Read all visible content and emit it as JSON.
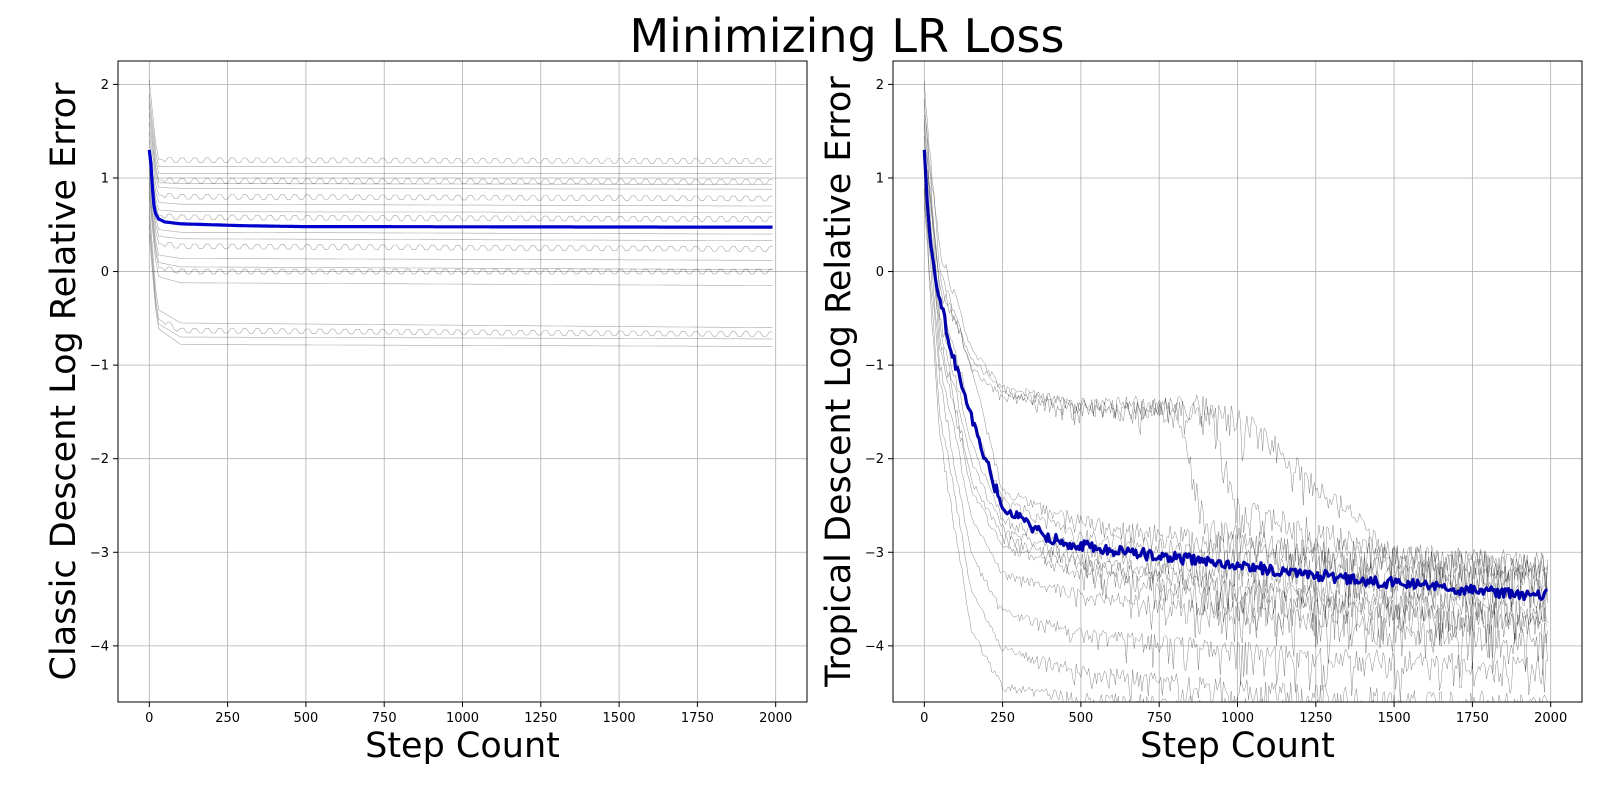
{
  "figure": {
    "title": "Minimizing LR Loss"
  },
  "chart_data": [
    {
      "type": "line",
      "id": "classic",
      "title": "",
      "xlabel": "Step Count",
      "ylabel": "Classic Descent Log Relative Error",
      "xlim": [
        -100,
        2100
      ],
      "ylim": [
        -4.6,
        2.25
      ],
      "xticks": [
        0,
        250,
        500,
        750,
        1000,
        1250,
        1500,
        1750,
        2000
      ],
      "yticks": [
        2,
        1,
        0,
        -1,
        -2,
        -3,
        -4
      ],
      "grid": true,
      "mean_series": {
        "color": "#0000cc",
        "x": [
          0,
          5,
          10,
          15,
          20,
          30,
          50,
          75,
          100,
          150,
          200,
          250,
          300,
          400,
          500,
          750,
          1000,
          1250,
          1500,
          1750,
          1990
        ],
        "y": [
          1.3,
          1.15,
          0.9,
          0.7,
          0.62,
          0.56,
          0.53,
          0.52,
          0.51,
          0.505,
          0.5,
          0.495,
          0.49,
          0.485,
          0.48,
          0.48,
          0.478,
          0.477,
          0.476,
          0.475,
          0.475
        ]
      },
      "run_series": [
        {
          "x": [
            0,
            25,
            100,
            1990
          ],
          "y": [
            2.05,
            1.2,
            1.19,
            1.18
          ]
        },
        {
          "x": [
            0,
            25,
            100,
            1990
          ],
          "y": [
            1.9,
            1.12,
            1.12,
            1.12
          ]
        },
        {
          "x": [
            0,
            25,
            100,
            1990
          ],
          "y": [
            1.8,
            1.05,
            1.05,
            1.05
          ]
        },
        {
          "x": [
            0,
            25,
            100,
            1990
          ],
          "y": [
            1.7,
            0.98,
            0.97,
            0.96
          ]
        },
        {
          "x": [
            0,
            25,
            100,
            1990
          ],
          "y": [
            1.6,
            0.95,
            0.94,
            0.93
          ]
        },
        {
          "x": [
            0,
            25,
            100,
            1990
          ],
          "y": [
            1.5,
            0.9,
            0.89,
            0.88
          ]
        },
        {
          "x": [
            0,
            25,
            100,
            1990
          ],
          "y": [
            1.4,
            0.82,
            0.8,
            0.78
          ]
        },
        {
          "x": [
            0,
            25,
            100,
            1990
          ],
          "y": [
            1.3,
            0.74,
            0.72,
            0.7
          ]
        },
        {
          "x": [
            0,
            25,
            100,
            1990
          ],
          "y": [
            1.25,
            0.66,
            0.64,
            0.63
          ]
        },
        {
          "x": [
            0,
            25,
            100,
            1990
          ],
          "y": [
            1.2,
            0.6,
            0.58,
            0.56
          ]
        },
        {
          "x": [
            0,
            25,
            100,
            1990
          ],
          "y": [
            1.1,
            0.45,
            0.42,
            0.4
          ]
        },
        {
          "x": [
            0,
            25,
            100,
            1990
          ],
          "y": [
            1.05,
            0.38,
            0.35,
            0.33
          ]
        },
        {
          "x": [
            0,
            25,
            100,
            1990
          ],
          "y": [
            1.0,
            0.3,
            0.27,
            0.24
          ]
        },
        {
          "x": [
            0,
            25,
            100,
            1990
          ],
          "y": [
            0.95,
            0.18,
            0.14,
            0.12
          ]
        },
        {
          "x": [
            0,
            25,
            100,
            1990
          ],
          "y": [
            0.9,
            0.1,
            0.05,
            0.02
          ]
        },
        {
          "x": [
            0,
            25,
            100,
            1990
          ],
          "y": [
            0.85,
            0.05,
            0.0,
            0.0
          ]
        },
        {
          "x": [
            0,
            25,
            100,
            1990
          ],
          "y": [
            0.8,
            -0.05,
            -0.12,
            -0.15
          ]
        },
        {
          "x": [
            0,
            25,
            100,
            1990
          ],
          "y": [
            0.7,
            -0.4,
            -0.55,
            -0.6
          ]
        },
        {
          "x": [
            0,
            25,
            100,
            1990
          ],
          "y": [
            0.6,
            -0.5,
            -0.63,
            -0.67
          ]
        },
        {
          "x": [
            0,
            25,
            100,
            1990
          ],
          "y": [
            0.5,
            -0.55,
            -0.7,
            -0.72
          ]
        },
        {
          "x": [
            0,
            25,
            100,
            1990
          ],
          "y": [
            0.4,
            -0.6,
            -0.78,
            -0.8
          ]
        }
      ]
    },
    {
      "type": "line",
      "id": "tropical",
      "title": "",
      "xlabel": "Step Count",
      "ylabel": "Tropical Descent Log Relative Error",
      "xlim": [
        -100,
        2100
      ],
      "ylim": [
        -4.6,
        2.25
      ],
      "xticks": [
        0,
        250,
        500,
        750,
        1000,
        1250,
        1500,
        1750,
        2000
      ],
      "yticks": [
        2,
        1,
        0,
        -1,
        -2,
        -3,
        -4
      ],
      "grid": true,
      "mean_series": {
        "color": "#0000aa",
        "x": [
          0,
          10,
          20,
          40,
          60,
          80,
          100,
          125,
          150,
          175,
          200,
          225,
          250,
          300,
          350,
          400,
          450,
          500,
          600,
          700,
          800,
          900,
          1000,
          1100,
          1200,
          1300,
          1400,
          1500,
          1600,
          1700,
          1800,
          1900,
          1990
        ],
        "y": [
          1.3,
          0.7,
          0.3,
          -0.15,
          -0.45,
          -0.75,
          -1.0,
          -1.3,
          -1.55,
          -1.8,
          -2.05,
          -2.3,
          -2.5,
          -2.62,
          -2.75,
          -2.85,
          -2.9,
          -2.92,
          -2.98,
          -3.02,
          -3.06,
          -3.1,
          -3.14,
          -3.18,
          -3.22,
          -3.26,
          -3.3,
          -3.33,
          -3.36,
          -3.39,
          -3.42,
          -3.45,
          -3.45
        ]
      },
      "run_series": [
        {
          "x": [
            0,
            50,
            150,
            250,
            500,
            1000,
            1500,
            1990
          ],
          "y": [
            2.0,
            0.0,
            -1.0,
            -2.3,
            -2.6,
            -2.8,
            -2.9,
            -3.0
          ]
        },
        {
          "x": [
            0,
            50,
            150,
            250,
            500,
            1000,
            1500,
            1990
          ],
          "y": [
            1.8,
            -0.3,
            -1.5,
            -2.4,
            -2.75,
            -2.95,
            -3.05,
            -3.15
          ]
        },
        {
          "x": [
            0,
            50,
            150,
            250,
            500,
            1000,
            1500,
            1990
          ],
          "y": [
            1.6,
            -0.5,
            -1.8,
            -2.6,
            -2.9,
            -3.1,
            -3.25,
            -3.35
          ]
        },
        {
          "x": [
            0,
            50,
            150,
            250,
            500,
            1000,
            1500,
            1990
          ],
          "y": [
            1.4,
            -0.6,
            -2.0,
            -2.7,
            -3.0,
            -3.25,
            -3.4,
            -3.5
          ]
        },
        {
          "x": [
            0,
            50,
            150,
            250,
            500,
            1000,
            1500,
            1990
          ],
          "y": [
            1.2,
            -0.8,
            -2.3,
            -2.9,
            -3.15,
            -3.4,
            -3.55,
            -3.65
          ]
        },
        {
          "x": [
            0,
            50,
            150,
            250,
            500,
            1000,
            1500,
            1990
          ],
          "y": [
            1.0,
            -1.0,
            -2.6,
            -3.2,
            -3.4,
            -3.55,
            -3.7,
            -3.8
          ]
        },
        {
          "x": [
            0,
            50,
            150,
            250,
            500,
            1000,
            1500,
            1990
          ],
          "y": [
            0.9,
            -1.2,
            -3.0,
            -3.6,
            -3.8,
            -3.95,
            -4.05,
            -4.1
          ]
        },
        {
          "x": [
            0,
            50,
            150,
            250,
            500,
            1000,
            1500,
            1990
          ],
          "y": [
            0.8,
            -1.5,
            -3.4,
            -4.0,
            -4.2,
            -4.35,
            -4.45,
            -4.5
          ]
        },
        {
          "x": [
            0,
            50,
            150,
            250,
            500,
            1000,
            1500,
            1990
          ],
          "y": [
            1.5,
            -0.2,
            -0.9,
            -1.25,
            -1.35,
            -1.4,
            -2.9,
            -3.1
          ]
        },
        {
          "x": [
            0,
            50,
            150,
            250,
            500,
            900,
            1000,
            1500,
            1990
          ],
          "y": [
            1.7,
            0.2,
            -0.8,
            -1.2,
            -1.35,
            -1.3,
            -2.4,
            -2.9,
            -3.0
          ]
        },
        {
          "x": [
            0,
            50,
            150,
            250,
            500,
            800,
            900,
            1500,
            1990
          ],
          "y": [
            1.3,
            -0.1,
            -1.0,
            -1.3,
            -1.4,
            -1.35,
            -2.6,
            -3.1,
            -3.2
          ]
        },
        {
          "x": [
            0,
            50,
            150,
            250,
            500,
            1000,
            1500,
            1990
          ],
          "y": [
            1.1,
            -0.7,
            -2.2,
            -2.8,
            -3.05,
            -3.3,
            -3.45,
            -3.55
          ]
        },
        {
          "x": [
            0,
            50,
            150,
            250,
            500,
            1000,
            1500,
            1990
          ],
          "y": [
            0.7,
            -1.8,
            -3.8,
            -4.4,
            -4.5,
            -4.55,
            -4.58,
            -4.6
          ]
        }
      ]
    }
  ]
}
